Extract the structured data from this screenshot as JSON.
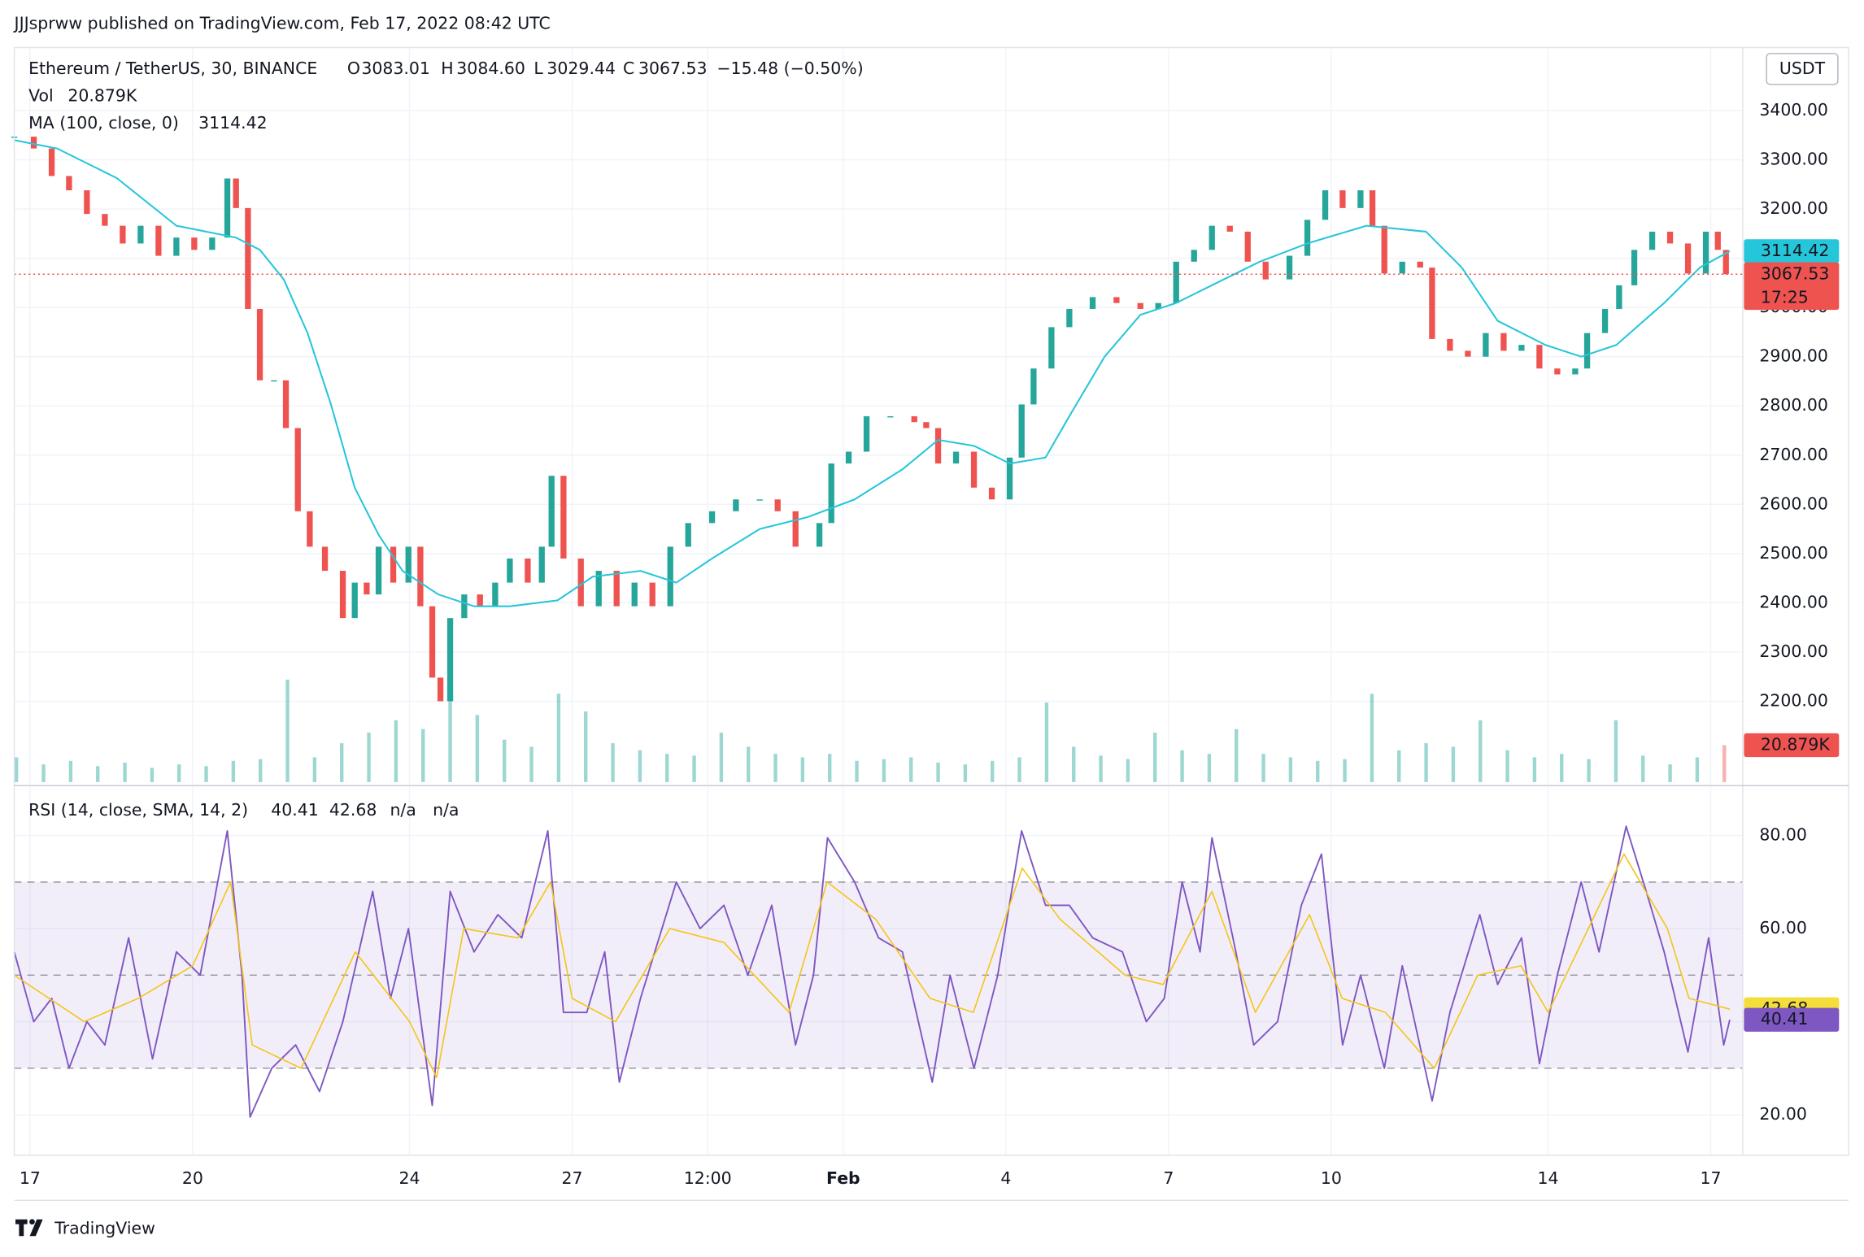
{
  "header": {
    "published": "JJJsprww published on TradingView.com, Feb 17, 2022 08:42 UTC"
  },
  "footer": {
    "brand": "TradingView"
  },
  "chart_data": [
    {
      "type": "candlestick",
      "title": "Ethereum / TetherUS, 30, BINANCE",
      "ohlc": {
        "labels": [
          "O",
          "H",
          "L",
          "C"
        ],
        "values": [
          3083.01,
          3084.6,
          3029.44,
          3067.53
        ],
        "value_labels": [
          "3083.01",
          "3084.60",
          "3029.44",
          "3067.53"
        ]
      },
      "change": "−15.48 (−0.50%)",
      "currency": "USDT",
      "countdown": "17:25",
      "x": [
        -0.29,
        0.07,
        0.4,
        0.72,
        1.05,
        1.38,
        1.71,
        2.04,
        2.37,
        2.7,
        3.03,
        3.36,
        3.64,
        3.8,
        4.02,
        4.24,
        4.5,
        4.72,
        4.94,
        5.16,
        5.44,
        5.77,
        5.99,
        6.21,
        6.43,
        6.7,
        6.98,
        7.2,
        7.42,
        7.57,
        7.75,
        8.01,
        8.3,
        8.58,
        8.85,
        9.18,
        9.44,
        9.62,
        9.84,
        10.16,
        10.49,
        10.82,
        11.15,
        11.48,
        11.81,
        12.14,
        12.58,
        13.02,
        13.46,
        13.79,
        14.12,
        14.56,
        14.78,
        15.1,
        15.43,
        15.87,
        16.31,
        16.53,
        16.75,
        17.08,
        17.41,
        17.74,
        18.07,
        18.29,
        18.51,
        18.84,
        19.17,
        19.6,
        20.04,
        20.48,
        20.81,
        21.14,
        21.47,
        21.8,
        22.13,
        22.46,
        22.79,
        23.23,
        23.56,
        23.89,
        24.21,
        24.54,
        24.76,
        24.98,
        25.31,
        25.64,
        25.86,
        26.19,
        26.52,
        26.85,
        27.18,
        27.51,
        27.84,
        28.17,
        28.5,
        28.72,
        29.05,
        29.31,
        29.59,
        29.92,
        30.25,
        30.58,
        30.91,
        31.13,
        31.28
      ],
      "series": [
        {
          "color_up": "#26a69a",
          "color_down": "#ef5350",
          "values": [
            3347,
            3323,
            3267,
            3238,
            3190,
            3166,
            3130,
            3166,
            3105,
            3142,
            3117,
            3142,
            3262,
            3202,
            2997,
            2852,
            2852,
            2755,
            2586,
            2514,
            2465,
            2369,
            2441,
            2417,
            2514,
            2441,
            2514,
            2393,
            2248,
            2200,
            2369,
            2417,
            2393,
            2441,
            2490,
            2441,
            2514,
            2658,
            2490,
            2393,
            2465,
            2393,
            2441,
            2393,
            2514,
            2562,
            2586,
            2610,
            2610,
            2586,
            2514,
            2562,
            2683,
            2707,
            2779,
            2779,
            2767,
            2755,
            2683,
            2707,
            2634,
            2610,
            2695,
            2803,
            2876,
            2960,
            2997,
            3021,
            3009,
            2997,
            3009,
            3093,
            3117,
            3166,
            3154,
            3093,
            3057,
            3105,
            3178,
            3238,
            3202,
            3238,
            3166,
            3069,
            3093,
            3081,
            2936,
            2912,
            2900,
            2948,
            2912,
            2924,
            2876,
            2864,
            2876,
            2948,
            2997,
            3045,
            3117,
            3154,
            3130,
            3069,
            3154,
            3117,
            3067.53
          ]
        },
        {
          "name": "MA (100, close, 0)",
          "color": "#26c6da",
          "x": [
            -0.29,
            0.5,
            1.6,
            2.7,
            3.8,
            4.24,
            4.68,
            5.12,
            5.55,
            5.99,
            6.43,
            6.87,
            7.53,
            8.19,
            8.85,
            9.73,
            10.38,
            11.26,
            11.92,
            12.58,
            13.46,
            14.34,
            15.21,
            16.09,
            16.75,
            17.41,
            18.07,
            18.73,
            19.17,
            19.82,
            20.48,
            21.14,
            21.8,
            22.68,
            23.56,
            24.65,
            25.75,
            26.41,
            27.07,
            27.95,
            28.61,
            29.26,
            30.14,
            30.8,
            31.35
          ],
          "values": [
            3340,
            3323,
            3263,
            3166,
            3142,
            3117,
            3057,
            2948,
            2803,
            2634,
            2538,
            2465,
            2417,
            2393,
            2393,
            2405,
            2453,
            2465,
            2441,
            2490,
            2550,
            2574,
            2610,
            2671,
            2731,
            2719,
            2683,
            2695,
            2779,
            2900,
            2985,
            3009,
            3045,
            3093,
            3130,
            3166,
            3154,
            3081,
            2973,
            2924,
            2900,
            2924,
            3009,
            3081,
            3114.42
          ]
        }
      ],
      "volume": {
        "name": "Vol",
        "color": "#26a69a",
        "color_last": "#ef5350",
        "last_label": "20.879K",
        "x": [
          -0.25,
          0.25,
          0.75,
          1.25,
          1.75,
          2.25,
          2.75,
          3.25,
          3.75,
          4.25,
          4.75,
          5.25,
          5.75,
          6.25,
          6.75,
          7.25,
          7.75,
          8.25,
          8.75,
          9.25,
          9.75,
          10.25,
          10.75,
          11.25,
          11.75,
          12.25,
          12.75,
          13.25,
          13.75,
          14.25,
          14.75,
          15.25,
          15.75,
          16.25,
          16.75,
          17.25,
          17.75,
          18.25,
          18.75,
          19.25,
          19.75,
          20.25,
          20.75,
          21.25,
          21.75,
          22.25,
          22.75,
          23.25,
          23.75,
          24.25,
          24.75,
          25.25,
          25.75,
          26.25,
          26.75,
          27.25,
          27.75,
          28.25,
          28.75,
          29.25,
          29.75,
          30.25,
          30.75,
          31.25
        ],
        "values": [
          14000,
          10000,
          12000,
          9000,
          11000,
          8000,
          10000,
          9000,
          12000,
          13000,
          58000,
          14000,
          22000,
          28000,
          35000,
          30000,
          55000,
          38000,
          24000,
          20000,
          50000,
          40000,
          22000,
          18000,
          16000,
          15000,
          28000,
          20000,
          16000,
          14000,
          16000,
          12000,
          13000,
          14000,
          11000,
          10000,
          12000,
          14000,
          45000,
          20000,
          15000,
          13000,
          28000,
          18000,
          16000,
          30000,
          16000,
          14000,
          12000,
          13000,
          50000,
          18000,
          22000,
          20000,
          35000,
          18000,
          14000,
          16000,
          13000,
          35000,
          15000,
          10000,
          14000,
          20879
        ]
      },
      "ylim": [
        2031,
        3528
      ],
      "yticks": [
        {
          "value": 2200,
          "label": "2200.00"
        },
        {
          "value": 2300,
          "label": "2300.00"
        },
        {
          "value": 2400,
          "label": "2400.00"
        },
        {
          "value": 2500,
          "label": "2500.00"
        },
        {
          "value": 2600,
          "label": "2600.00"
        },
        {
          "value": 2700,
          "label": "2700.00"
        },
        {
          "value": 2800,
          "label": "2800.00"
        },
        {
          "value": 2900,
          "label": "2900.00"
        },
        {
          "value": 3000,
          "label": "3000.00"
        },
        {
          "value": 3100,
          "label": "3100.00"
        },
        {
          "value": 3200,
          "label": "3200.00"
        },
        {
          "value": 3300,
          "label": "3300.00"
        },
        {
          "value": 3400,
          "label": "3400.00"
        }
      ],
      "vlim": [
        0,
        140000
      ],
      "grid": true
    },
    {
      "type": "line",
      "title": "RSI (14, close, SMA, 14, 2)",
      "extra": [
        "n/a",
        "n/a"
      ],
      "series": [
        {
          "color": "#7e57c2",
          "x": [
            -0.29,
            0.07,
            0.4,
            0.72,
            1.05,
            1.38,
            1.82,
            2.26,
            2.7,
            3.14,
            3.64,
            3.91,
            4.06,
            4.46,
            4.9,
            5.34,
            5.77,
            6.32,
            6.65,
            6.98,
            7.42,
            7.75,
            8.19,
            8.63,
            9.07,
            9.55,
            9.84,
            10.27,
            10.6,
            10.87,
            11.26,
            11.92,
            12.36,
            12.8,
            13.24,
            13.68,
            14.12,
            14.45,
            14.71,
            15.21,
            15.65,
            16.09,
            16.64,
            16.97,
            17.41,
            17.85,
            18.29,
            18.73,
            19.17,
            19.6,
            20.15,
            20.59,
            20.92,
            21.25,
            21.58,
            21.8,
            22.24,
            22.57,
            23.01,
            23.45,
            23.82,
            24.21,
            24.54,
            24.98,
            25.31,
            25.86,
            26.19,
            26.74,
            27.07,
            27.51,
            27.84,
            28.17,
            28.61,
            28.94,
            29.44,
            29.81,
            30.14,
            30.58,
            30.96,
            31.24,
            31.35
          ],
          "values": [
            55,
            40,
            45,
            30,
            40,
            35,
            58,
            32,
            55,
            50,
            81,
            50,
            19.5,
            30,
            35,
            25,
            40,
            68,
            45,
            60,
            22,
            68,
            55,
            63,
            58,
            81,
            42,
            42,
            55,
            27,
            45,
            70,
            60,
            65,
            50,
            65,
            35,
            50,
            79.5,
            70,
            58,
            55,
            27,
            50,
            30,
            50,
            81,
            65,
            65,
            58,
            55,
            40,
            45,
            70,
            55,
            79.5,
            55,
            35,
            40,
            65,
            76,
            35,
            50,
            30,
            52,
            23,
            42,
            63,
            48,
            58,
            31,
            50,
            70,
            55,
            82,
            68,
            55,
            33.5,
            58,
            35,
            40.41
          ]
        },
        {
          "color": "#f5c518",
          "x": [
            -0.29,
            1,
            2,
            3,
            3.7,
            4.1,
            5,
            6,
            7,
            7.5,
            8,
            9,
            9.6,
            10,
            10.8,
            11.8,
            12.8,
            14,
            14.7,
            15.6,
            16.6,
            17.4,
            18.3,
            19,
            20.2,
            20.9,
            21.8,
            22.6,
            23.6,
            24.2,
            25,
            25.9,
            26.7,
            27.5,
            28,
            29.4,
            30.2,
            30.6,
            31.35
          ],
          "values": [
            50,
            40,
            45,
            52,
            70,
            35,
            30,
            55,
            40,
            28,
            60,
            58,
            70,
            45,
            40,
            60,
            57,
            42,
            70,
            62,
            45,
            42,
            73,
            62,
            50,
            48,
            68,
            42,
            63,
            45,
            42,
            30,
            50,
            52,
            42,
            76,
            60,
            45,
            42.68
          ]
        }
      ],
      "bands": {
        "upper": 70,
        "middle": 50,
        "lower": 30,
        "fill": "#7e57c2"
      },
      "xlim": [
        -0.29,
        31.59
      ],
      "xticks": [
        {
          "value": 0,
          "label": "17"
        },
        {
          "value": 3,
          "label": "20"
        },
        {
          "value": 7,
          "label": "24"
        },
        {
          "value": 10,
          "label": "27"
        },
        {
          "value": 12.5,
          "label": "12:00"
        },
        {
          "value": 15,
          "label": "Feb"
        },
        {
          "value": 18,
          "label": "4"
        },
        {
          "value": 21,
          "label": "7"
        },
        {
          "value": 24,
          "label": "10"
        },
        {
          "value": 28,
          "label": "14"
        },
        {
          "value": 31,
          "label": "17"
        }
      ],
      "ylim": [
        11.3,
        89.7
      ],
      "yticks": [
        {
          "value": 20,
          "label": "20.00"
        },
        {
          "value": 40,
          "label": "40.00"
        },
        {
          "value": 60,
          "label": "60.00"
        },
        {
          "value": 80,
          "label": "80.00"
        }
      ],
      "grid": true
    }
  ]
}
